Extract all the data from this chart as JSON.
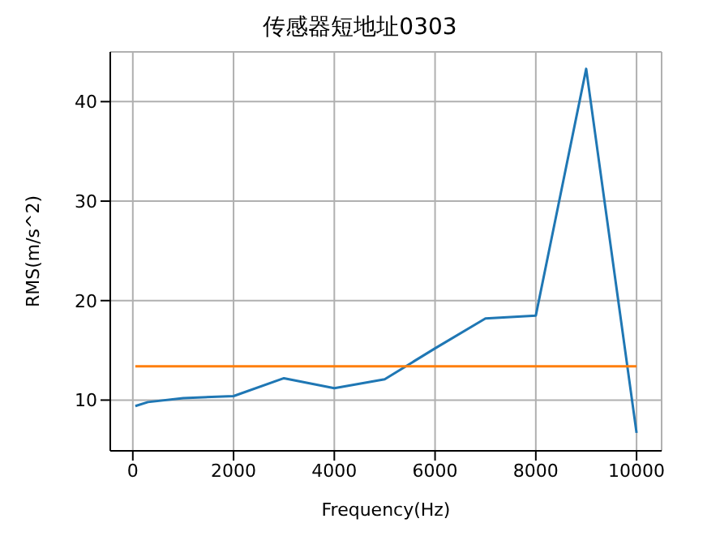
{
  "chart_data": {
    "type": "line",
    "title": "传感器短地址0303",
    "xlabel": "Frequency(Hz)",
    "ylabel": "RMS(m/s^2)",
    "xlim": [
      -447.5,
      10497.5
    ],
    "xticks": [
      0,
      2000,
      4000,
      6000,
      8000,
      10000
    ],
    "ylim": [
      4.9,
      45
    ],
    "yticks": [
      10,
      20,
      30,
      40
    ],
    "grid": true,
    "series": [
      {
        "color": "#1f77b4",
        "x": [
          50,
          300,
          1000,
          2000,
          3000,
          4000,
          5000,
          6000,
          7000,
          8000,
          9000,
          10000
        ],
        "values": [
          9.4,
          9.8,
          10.2,
          10.4,
          12.2,
          11.2,
          12.1,
          15.2,
          18.2,
          18.5,
          43.3,
          6.7
        ]
      },
      {
        "color": "#ff7f0e",
        "x": [
          50,
          10000
        ],
        "values": [
          13.4,
          13.4
        ]
      }
    ]
  }
}
